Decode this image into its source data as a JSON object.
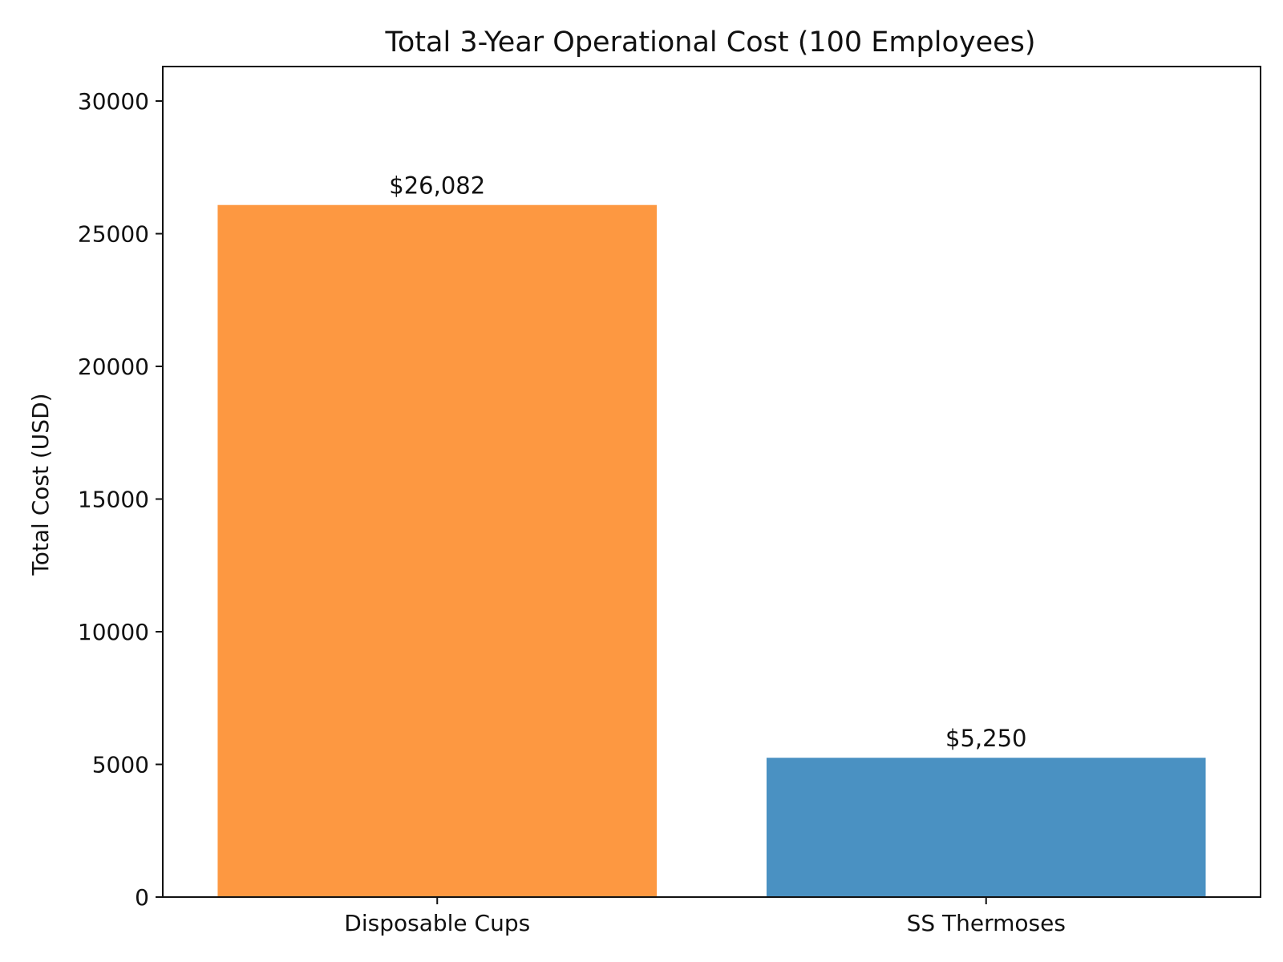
{
  "chart_data": {
    "type": "bar",
    "title": "Total 3-Year Operational Cost (100 Employees)",
    "xlabel": "",
    "ylabel": "Total Cost (USD)",
    "categories": [
      "Disposable Cups",
      "SS Thermoses"
    ],
    "values": [
      26082,
      5250
    ],
    "data_labels": [
      "$26,082",
      "$5,250"
    ],
    "colors": [
      "#fd9841",
      "#4a91c2"
    ],
    "ylim": [
      0,
      31300
    ],
    "yticks": [
      0,
      5000,
      10000,
      15000,
      20000,
      25000,
      30000
    ],
    "grid": false,
    "legend": "none"
  }
}
